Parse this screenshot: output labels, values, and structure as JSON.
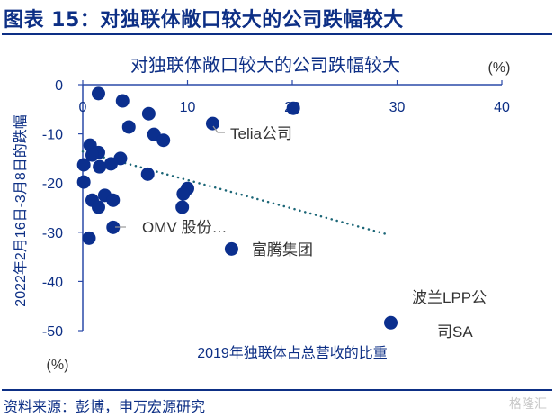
{
  "header": {
    "title": "图表 15：对独联体敞口较大的公司跌幅较大"
  },
  "footer": {
    "source": "资料来源：彭博，申万宏源研究",
    "watermark": "格隆汇"
  },
  "chart_data": {
    "type": "scatter",
    "title": "对独联体敞口较大的公司跌幅较大",
    "xlabel": "2019年独联体占总营收的比重",
    "ylabel": "2022年2月16日-3月8日的跌幅",
    "x_unit": "(%)",
    "y_unit": "(%)",
    "xlim": [
      0,
      40
    ],
    "ylim": [
      -50,
      0
    ],
    "x_ticks": [
      "0",
      "10",
      "20",
      "30",
      "40"
    ],
    "y_ticks": [
      "0",
      "-10",
      "-20",
      "-30",
      "-40",
      "-50"
    ],
    "x_axis_position": "top",
    "grid": false,
    "points": [
      {
        "x": 1.5,
        "y": -1.8
      },
      {
        "x": 3.8,
        "y": -3.3
      },
      {
        "x": 6.3,
        "y": -5.9
      },
      {
        "x": 12.4,
        "y": -7.9,
        "label": "Telia公司"
      },
      {
        "x": 20.1,
        "y": -4.8
      },
      {
        "x": 4.4,
        "y": -8.6
      },
      {
        "x": 6.8,
        "y": -10.1
      },
      {
        "x": 7.7,
        "y": -11.3
      },
      {
        "x": 0.7,
        "y": -12.3
      },
      {
        "x": 1.5,
        "y": -13.8
      },
      {
        "x": 0.9,
        "y": -14.3
      },
      {
        "x": 3.6,
        "y": -15.0
      },
      {
        "x": 2.7,
        "y": -16.1
      },
      {
        "x": 0.1,
        "y": -16.3
      },
      {
        "x": 1.6,
        "y": -16.7
      },
      {
        "x": 6.2,
        "y": -18.2
      },
      {
        "x": 0.1,
        "y": -19.8
      },
      {
        "x": 10.0,
        "y": -21.1
      },
      {
        "x": 9.6,
        "y": -22.2
      },
      {
        "x": 0.9,
        "y": -23.5
      },
      {
        "x": 2.1,
        "y": -22.5
      },
      {
        "x": 2.9,
        "y": -23.5
      },
      {
        "x": 1.5,
        "y": -24.9
      },
      {
        "x": 9.5,
        "y": -24.9
      },
      {
        "x": 2.9,
        "y": -29.0,
        "label": "OMV 股份…"
      },
      {
        "x": 0.6,
        "y": -31.2
      },
      {
        "x": 14.2,
        "y": -33.4,
        "label": "富腾集团"
      },
      {
        "x": 29.4,
        "y": -48.4,
        "label": "波兰LPP公司SA"
      }
    ],
    "annotations": [
      {
        "text": "Telia公司"
      },
      {
        "text": "OMV 股份…"
      },
      {
        "text": "富腾集团"
      },
      {
        "line1": "波兰LPP公",
        "line2": "司SA"
      }
    ],
    "trendline": {
      "style": "dotted",
      "x": [
        0,
        29
      ],
      "y": [
        -13.6,
        -30.4
      ]
    },
    "colors": {
      "points": "#0b2f8e",
      "trend": "#1c6677",
      "axis": "#2a4aa8",
      "text": "#0d2f85",
      "label": "#333333",
      "leader": "#999999"
    }
  }
}
